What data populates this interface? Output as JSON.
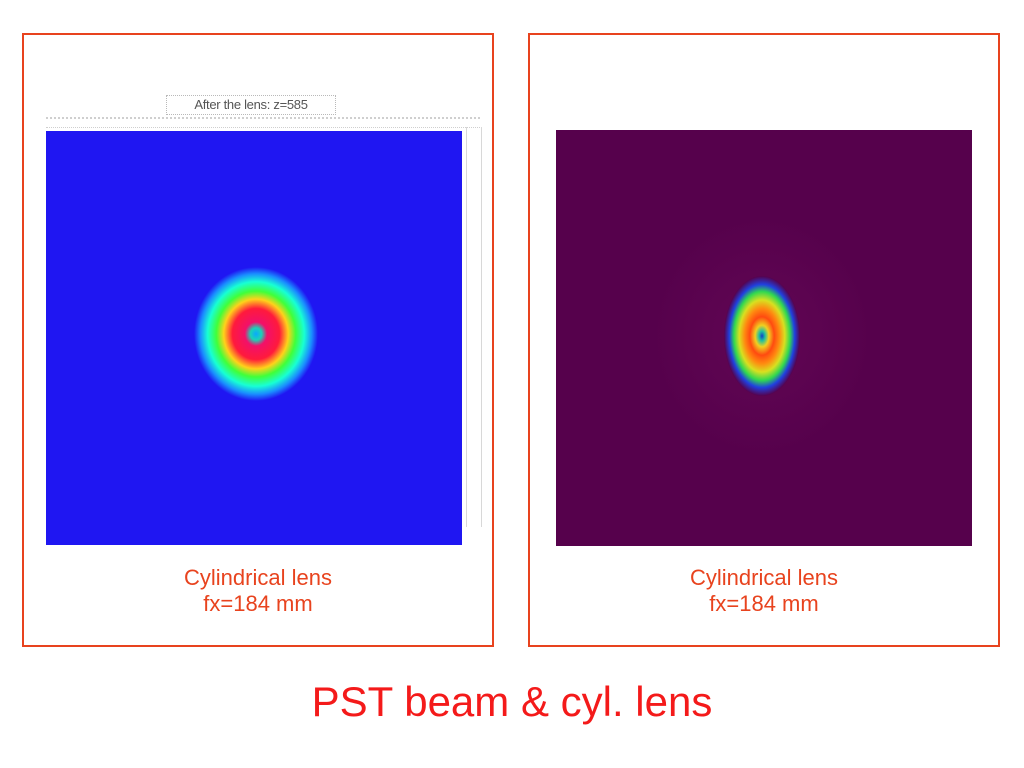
{
  "panels": [
    {
      "plot_title": "After the lens: z=585",
      "caption_line1": "Cylindrical lens",
      "caption_line2": "fx=184 mm",
      "background_color": "#1f16f2"
    },
    {
      "caption_line1": "Cylindrical lens",
      "caption_line2": "fx=184 mm",
      "background_color": "#56014c"
    }
  ],
  "title": "PST beam & cyl. lens",
  "colors": {
    "frame": "#e8431e",
    "caption": "#e8431e",
    "title": "#f41a1a"
  }
}
